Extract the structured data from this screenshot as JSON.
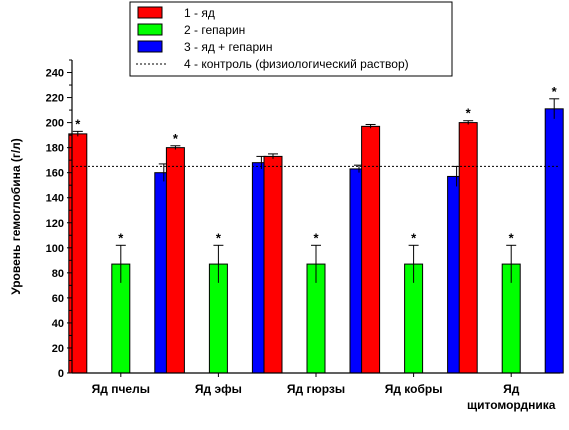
{
  "chart_data": {
    "type": "bar",
    "ylabel": "Уровень  гемоглобина (г/л)",
    "ylim": [
      0,
      250
    ],
    "yticks": [
      0,
      20,
      40,
      60,
      80,
      100,
      120,
      140,
      160,
      180,
      200,
      220,
      240
    ],
    "categories": [
      [
        "Яд пчелы"
      ],
      [
        "Яд эфы"
      ],
      [
        "Яд гюрзы"
      ],
      [
        "Яд кобры"
      ],
      [
        "Яд",
        "щитомордника"
      ]
    ],
    "series": [
      {
        "name": "1 - яд",
        "color": "#ff0000",
        "values": [
          191,
          180,
          173,
          197,
          200
        ],
        "errors": [
          2,
          1.5,
          2,
          1.5,
          1.5
        ],
        "significant": [
          true,
          true,
          false,
          false,
          true
        ]
      },
      {
        "name": "2 - гепарин",
        "color": "#00ff00",
        "values": [
          87,
          87,
          87,
          87,
          87
        ],
        "errors": [
          15,
          15,
          15,
          15,
          15
        ],
        "significant": [
          true,
          true,
          true,
          true,
          true
        ]
      },
      {
        "name": "3 - яд + гепарин",
        "color": "#0000ff",
        "values": [
          160,
          168,
          163,
          157,
          211
        ],
        "errors": [
          7,
          5,
          3,
          8,
          8
        ],
        "significant": [
          false,
          false,
          false,
          false,
          true
        ]
      }
    ],
    "reference_line": {
      "name": "4 - контроль (физиологический  раствор)",
      "value": 165,
      "style": "dotted"
    },
    "significance_marker": "*",
    "legend_position": "top-center",
    "grid": false
  }
}
